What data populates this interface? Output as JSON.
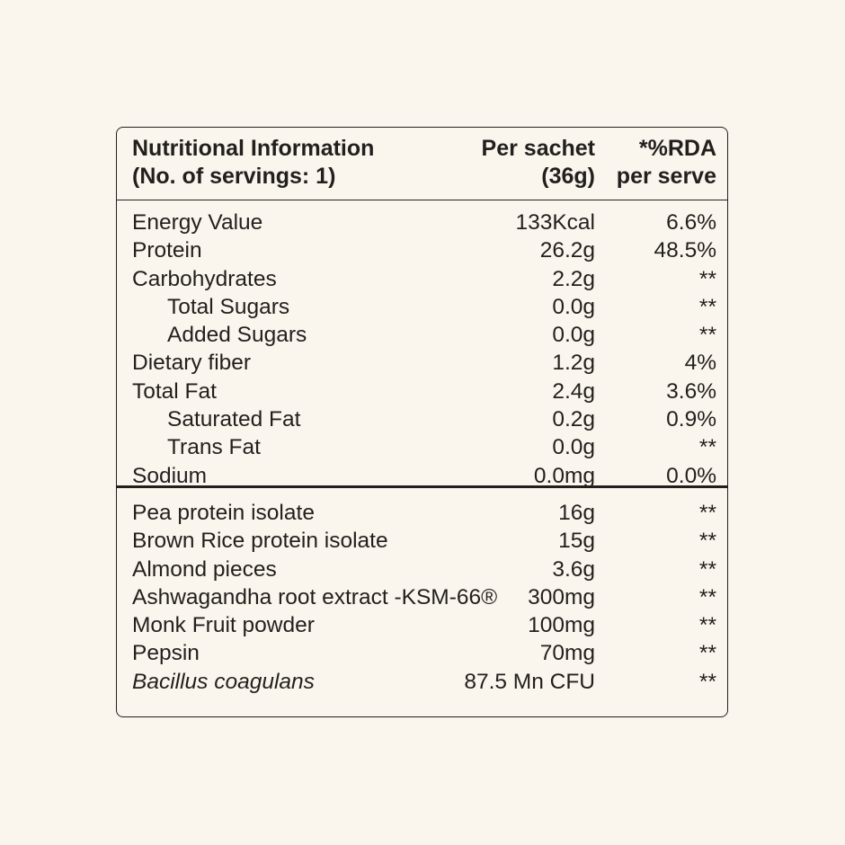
{
  "header": {
    "label": [
      "Nutritional Information",
      "(No. of servings: 1)"
    ],
    "per_sachet": [
      "Per sachet",
      "(36g)"
    ],
    "rda": [
      "*%RDA",
      "per serve"
    ]
  },
  "nutrients": [
    [
      "Energy Value",
      "133Kcal",
      "6.6%"
    ],
    [
      "Protein",
      "26.2g",
      "48.5%"
    ],
    [
      "Carbohydrates",
      "2.2g",
      "**"
    ],
    [
      "Total Sugars",
      "0.0g",
      "**"
    ],
    [
      "Added Sugars",
      "0.0g",
      "**"
    ],
    [
      "Dietary fiber",
      "1.2g",
      "4%"
    ],
    [
      "Total Fat",
      "2.4g",
      "3.6%"
    ],
    [
      "Saturated Fat",
      "0.2g",
      "0.9%"
    ],
    [
      "Trans Fat",
      "0.0g",
      "**"
    ],
    [
      "Sodium",
      "0.0mg",
      "0.0%"
    ]
  ],
  "ingredients": [
    [
      "Pea protein isolate",
      "16g",
      "**"
    ],
    [
      "Brown Rice protein isolate",
      "15g",
      "**"
    ],
    [
      "Almond pieces",
      "3.6g",
      "**"
    ],
    [
      "Ashwagandha root extract -KSM-66®",
      "300mg",
      "**"
    ],
    [
      "Monk Fruit powder",
      "100mg",
      "**"
    ],
    [
      "Pepsin",
      "70mg",
      "**"
    ],
    [
      "Bacillus coagulans",
      "87.5 Mn CFU",
      "**"
    ]
  ]
}
